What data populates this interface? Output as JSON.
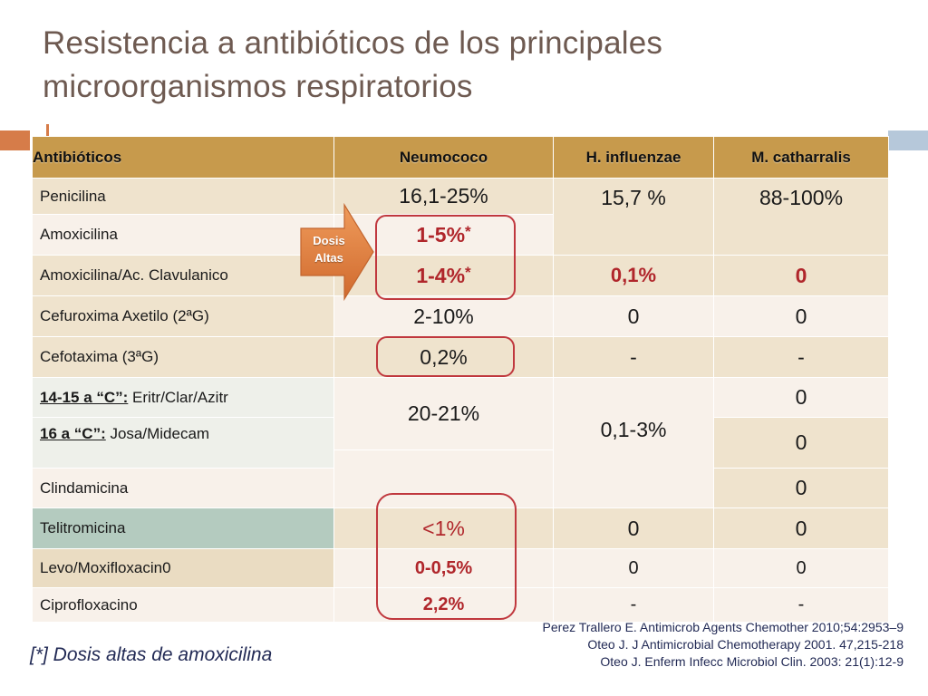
{
  "title": {
    "line1": "Resistencia a antibióticos de los principales",
    "line2": "microorganismos respiratorios"
  },
  "table": {
    "headers": [
      "Antibióticos",
      "Neumococo",
      "H. influenzae",
      "M. catharralis"
    ],
    "rows": {
      "penicilina": {
        "name": "Penicilina",
        "neumococo": "16,1-25%",
        "hinfluenzae": "15,7 %",
        "mcatarrhalis": "88-100%"
      },
      "amoxicilina": {
        "name": "Amoxicilina",
        "neumococo": "1-5%",
        "neumococo_mark": "*"
      },
      "amoxiclav": {
        "name": "Amoxicilina/Ac. Clavulanico",
        "neumococo": "1-4%",
        "neumococo_mark": "*",
        "hinfluenzae": "0,1%",
        "mcatarrhalis": "0"
      },
      "cefuroxima": {
        "name": "Cefuroxima Axetilo (2ªG)",
        "neumococo": "2-10%",
        "hinfluenzae": "0",
        "mcatarrhalis": "0"
      },
      "cefotaxima": {
        "name": "Cefotaxima (3ªG)",
        "neumococo": "0,2%",
        "hinfluenzae": "-",
        "mcatarrhalis": "-"
      },
      "macrolidos14": {
        "prefix": "14-15 a “C”:",
        "name": " Eritr/Clar/Azitr",
        "mcatarrhalis": "0"
      },
      "macrolidos16": {
        "prefix": "16 a “C”:",
        "name": " Josa/Midecam",
        "mcatarrhalis": "0"
      },
      "macrolidos_shared": {
        "neumococo": "20-21%",
        "hinfluenzae": "0,1-3%"
      },
      "clindamicina": {
        "name": "Clindamicina",
        "mcatarrhalis": "0"
      },
      "telitromicina": {
        "name": "Telitromicina",
        "neumococo": "<1%",
        "hinfluenzae": "0",
        "mcatarrhalis": "0"
      },
      "levo": {
        "name": "Levo/Moxifloxacin0",
        "neumococo": "0-0,5%",
        "hinfluenzae": "0",
        "mcatarrhalis": "0"
      },
      "cipro": {
        "name": "Ciprofloxacino",
        "neumococo": "2,2%",
        "hinfluenzae": "-",
        "mcatarrhalis": "-"
      }
    }
  },
  "callout": {
    "line1": "Dosis",
    "line2": "Altas"
  },
  "footnote": "[*]  Dosis altas de amoxicilina",
  "references": [
    "Perez Trallero E. Antimicrob Agents Chemother 2010;54:2953–9",
    "Oteo J.  J Antimicrobial Chemotherapy 2001. 47,215-218",
    "Oteo J. Enferm Infecc Microbiol Clin. 2003: 21(1):12-9"
  ],
  "colors": {
    "title": "#6e5a51",
    "header": "#c79a4c",
    "row_odd": "#efe3cd",
    "row_even": "#f8f1ea",
    "highlight_red": "#b0262b",
    "arrow_orange": "#e2864a",
    "text_navy": "#222a55"
  }
}
